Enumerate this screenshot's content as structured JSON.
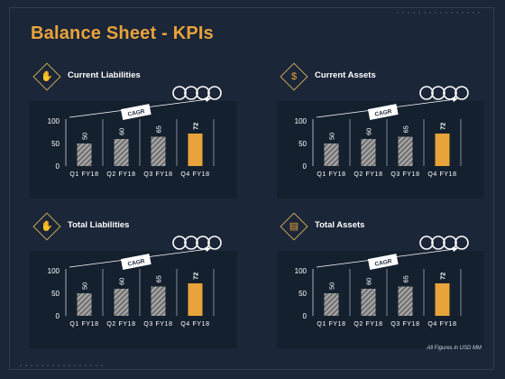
{
  "page": {
    "title": "Balance Sheet - KPIs",
    "footnote": "All Figures in USD MM",
    "accent": "#e8a33a",
    "background": "#1b2638"
  },
  "chart_data": [
    {
      "type": "bar",
      "title": "Current Liabilities",
      "icon": "money-hand-icon",
      "categories": [
        "Q1 FY18",
        "Q2 FY18",
        "Q3 FY18",
        "Q4 FY18"
      ],
      "values": [
        50,
        60,
        65,
        72
      ],
      "highlight_index": 3,
      "ylim": [
        0,
        100
      ],
      "yticks": [
        0,
        50,
        100
      ],
      "annotation": "CAGR",
      "bar_colors": {
        "normal": "#8a8a8a",
        "highlight": "#e8a33a"
      }
    },
    {
      "type": "bar",
      "title": "Current Assets",
      "icon": "dollar-coin-icon",
      "categories": [
        "Q1 FY18",
        "Q2 FY18",
        "Q3 FY18",
        "Q4 FY18"
      ],
      "values": [
        50,
        60,
        65,
        72
      ],
      "highlight_index": 3,
      "ylim": [
        0,
        100
      ],
      "yticks": [
        0,
        50,
        100
      ],
      "annotation": "CAGR",
      "bar_colors": {
        "normal": "#8a8a8a",
        "highlight": "#e8a33a"
      }
    },
    {
      "type": "bar",
      "title": "Total Liabilities",
      "icon": "money-hand-icon",
      "categories": [
        "Q1 FY18",
        "Q2 FY18",
        "Q3 FY18",
        "Q4 FY18"
      ],
      "values": [
        50,
        60,
        65,
        72
      ],
      "highlight_index": 3,
      "ylim": [
        0,
        100
      ],
      "yticks": [
        0,
        50,
        100
      ],
      "annotation": "CAGR",
      "bar_colors": {
        "normal": "#8a8a8a",
        "highlight": "#e8a33a"
      }
    },
    {
      "type": "bar",
      "title": "Total Assets",
      "icon": "money-stack-icon",
      "categories": [
        "Q1 FY18",
        "Q2 FY18",
        "Q3 FY18",
        "Q4 FY18"
      ],
      "values": [
        50,
        60,
        65,
        72
      ],
      "highlight_index": 3,
      "ylim": [
        0,
        100
      ],
      "yticks": [
        0,
        50,
        100
      ],
      "annotation": "CAGR",
      "bar_colors": {
        "normal": "#8a8a8a",
        "highlight": "#e8a33a"
      }
    }
  ]
}
